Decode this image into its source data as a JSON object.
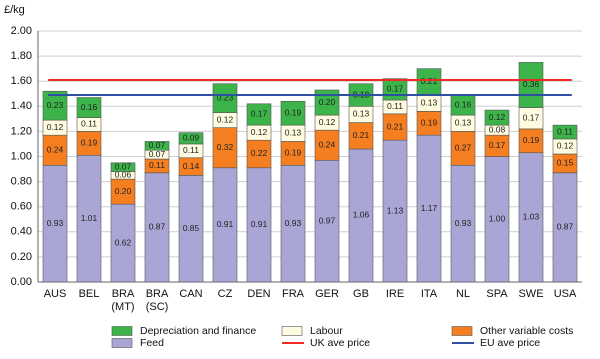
{
  "chart_data": {
    "type": "stacked-bar",
    "y_label": "£/kg",
    "categories": [
      "AUS",
      "BEL",
      [
        "BRA",
        "(MT)"
      ],
      [
        "BRA",
        "(SC)"
      ],
      "CAN",
      "CZ",
      "DEN",
      "FRA",
      "GER",
      "GB",
      "IRE",
      "ITA",
      "NL",
      "SPA",
      "SWE",
      "USA"
    ],
    "series": [
      {
        "name": "Feed",
        "color": "#a9a6d6",
        "values": [
          0.93,
          1.01,
          0.62,
          0.87,
          0.85,
          0.91,
          0.91,
          0.93,
          0.97,
          1.06,
          1.13,
          1.17,
          0.93,
          1.0,
          1.03,
          0.87
        ],
        "value_labels": [
          "0.93",
          "1.01",
          "0.62",
          "0.87",
          "0.85",
          "0.91",
          "0.91",
          "0.93",
          "0.97",
          "1.06",
          "1.13",
          "1.17",
          "0.93",
          "1.00",
          "1.03",
          "0.87"
        ]
      },
      {
        "name": "Other variable costs",
        "color": "#f57f20",
        "values": [
          0.24,
          0.19,
          0.2,
          0.11,
          0.14,
          0.32,
          0.22,
          0.19,
          0.24,
          0.21,
          0.21,
          0.19,
          0.27,
          0.17,
          0.19,
          0.15
        ],
        "value_labels": [
          "0.24",
          "0.19",
          "0.20",
          "0.11",
          "0.14",
          "0.32",
          "0.22",
          "0.19",
          "0.24",
          "0.21",
          "0.21",
          "0.19",
          "0.27",
          "0.17",
          "0.19",
          "0.15"
        ]
      },
      {
        "name": "Labour",
        "color": "#fefbe0",
        "values": [
          0.12,
          0.11,
          0.06,
          0.07,
          0.11,
          0.12,
          0.12,
          0.13,
          0.12,
          0.13,
          0.11,
          0.13,
          0.13,
          0.08,
          0.17,
          0.12
        ],
        "value_labels": [
          "0.12",
          "0.11",
          "0.06",
          "0.07",
          "0.11",
          "0.12",
          "0.12",
          "0.13",
          "0.12",
          "0.13",
          "0.11",
          "0.13",
          "0.13",
          "0.08",
          "0.17",
          "0.12"
        ]
      },
      {
        "name": "Depreciation and finance",
        "color": "#3cb44a",
        "values": [
          0.23,
          0.16,
          0.07,
          0.07,
          0.09,
          0.23,
          0.17,
          0.19,
          0.2,
          0.18,
          0.17,
          0.21,
          0.16,
          0.12,
          0.36,
          0.11
        ],
        "value_labels": [
          "0.23",
          "0.16",
          "0.07",
          "0.07",
          "0.09",
          "0.23",
          "0.17",
          "0.19",
          "0.20",
          "0.18",
          "0.17",
          "0.21",
          "0.16",
          "0.12",
          "0.36",
          "0.11"
        ]
      }
    ],
    "reference_lines": [
      {
        "name": "UK ave price",
        "color": "#ee2a24",
        "value": 1.61
      },
      {
        "name": "EU ave price",
        "color": "#2f4fa2",
        "value": 1.49
      }
    ],
    "ylim": [
      0,
      2
    ],
    "yticks": [
      {
        "value": 0,
        "label": "0.00"
      },
      {
        "value": 0.2,
        "label": "0.20"
      },
      {
        "value": 0.4,
        "label": "0.40"
      },
      {
        "value": 0.6,
        "label": "0.60"
      },
      {
        "value": 0.8,
        "label": "0.80"
      },
      {
        "value": 1,
        "label": "1.00"
      },
      {
        "value": 1.2,
        "label": "1.20"
      },
      {
        "value": 1.4,
        "label": "1.40"
      },
      {
        "value": 1.6,
        "label": "1.60"
      },
      {
        "value": 1.8,
        "label": "1.80"
      },
      {
        "value": 2,
        "label": "2.00"
      }
    ],
    "grid": true
  }
}
